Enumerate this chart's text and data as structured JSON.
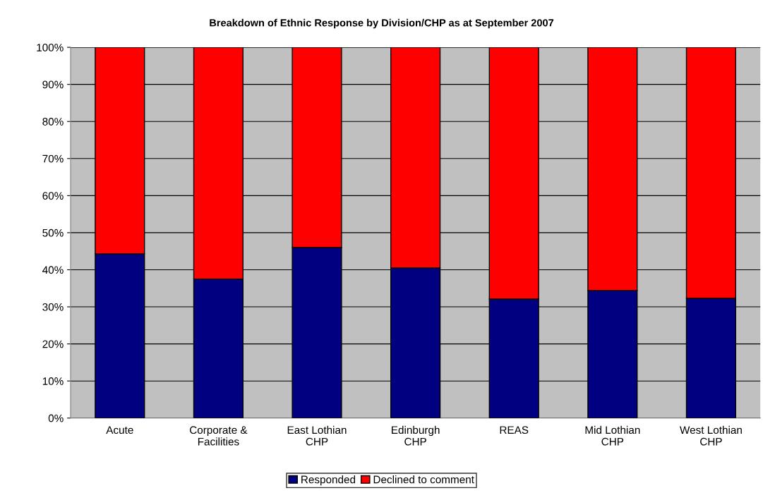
{
  "chart_data": {
    "type": "bar",
    "stacked": true,
    "title": "Breakdown of Ethnic Response by Division/CHP as at September 2007",
    "categories": [
      "Acute",
      "Corporate &\nFacilities",
      "East Lothian\nCHP",
      "Edinburgh\nCHP",
      "REAS",
      "Mid Lothian\nCHP",
      "West Lothian\nCHP"
    ],
    "series": [
      {
        "name": "Responded",
        "color": "#000080",
        "values": [
          44.3,
          37.5,
          46,
          40.5,
          32.1,
          34.4,
          32.3
        ]
      },
      {
        "name": "Declined to comment",
        "color": "#ff0000",
        "values": [
          55.7,
          62.5,
          54,
          59.5,
          67.9,
          65.6,
          67.7
        ]
      }
    ],
    "ylim": [
      0,
      100
    ],
    "yticks": [
      {
        "value": 0,
        "label": "0%"
      },
      {
        "value": 10,
        "label": "10%"
      },
      {
        "value": 20,
        "label": "20%"
      },
      {
        "value": 30,
        "label": "30%"
      },
      {
        "value": 40,
        "label": "40%"
      },
      {
        "value": 50,
        "label": "50%"
      },
      {
        "value": 60,
        "label": "60%"
      },
      {
        "value": 70,
        "label": "70%"
      },
      {
        "value": 80,
        "label": "80%"
      },
      {
        "value": 90,
        "label": "90%"
      },
      {
        "value": 100,
        "label": "100%"
      }
    ],
    "grid": "y",
    "legend": "bottom"
  }
}
